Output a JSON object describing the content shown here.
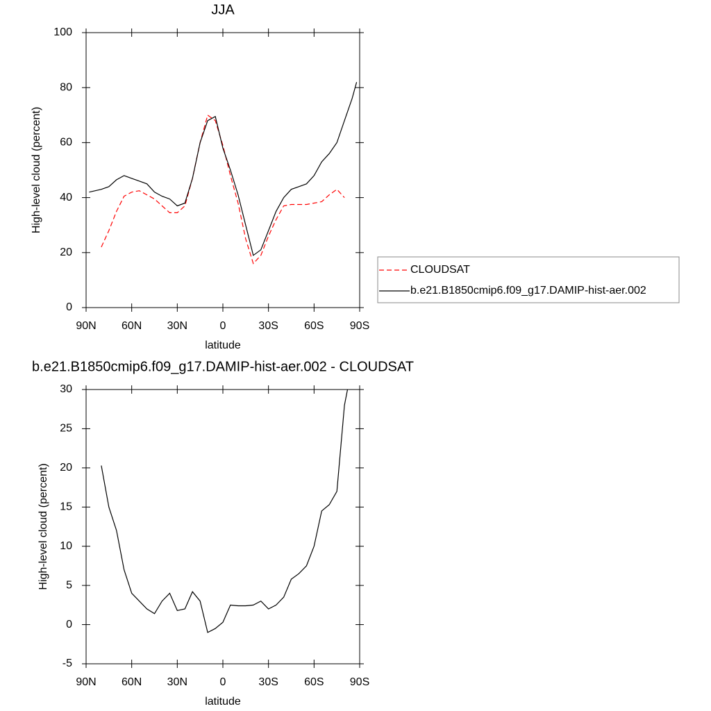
{
  "chart_data": [
    {
      "type": "line",
      "title": "JJA",
      "x_label": "latitude",
      "y_label": "High-level cloud (percent)",
      "x": [
        88,
        80,
        75,
        70,
        65,
        60,
        55,
        50,
        45,
        40,
        35,
        30,
        25,
        20,
        15,
        10,
        5,
        0,
        -5,
        -10,
        -15,
        -20,
        -25,
        -30,
        -35,
        -40,
        -45,
        -50,
        -55,
        -60,
        -65,
        -70,
        -75,
        -80,
        -85,
        -88
      ],
      "series": [
        {
          "name": "CLOUDSAT",
          "color": "#ff0000",
          "line_style": "dashed",
          "values": [
            null,
            22,
            28,
            35,
            40.5,
            42,
            42.5,
            41,
            39.5,
            37,
            34.5,
            34.5,
            37,
            47,
            60,
            70,
            68,
            59,
            48,
            38,
            25,
            16,
            19,
            26,
            32,
            37,
            37.5,
            37.5,
            37.5,
            38,
            38.5,
            41,
            43,
            40,
            null,
            null
          ]
        },
        {
          "name": "b.e21.B1850cmip6.f09_g17.DAMIP-hist-aer.002",
          "color": "#000000",
          "line_style": "solid",
          "values": [
            42,
            43,
            44,
            46.5,
            48,
            47,
            46,
            45,
            42,
            40.5,
            39.5,
            37,
            38,
            47,
            60,
            68,
            69.5,
            58,
            50,
            41,
            30,
            19,
            21,
            28,
            35,
            40,
            43,
            44,
            45,
            48,
            53,
            56,
            60,
            68,
            76,
            82
          ]
        }
      ],
      "xlim": [
        90,
        -90
      ],
      "xticks": [
        {
          "value": 90,
          "label": "90N"
        },
        {
          "value": 60,
          "label": "60N"
        },
        {
          "value": 30,
          "label": "30N"
        },
        0,
        {
          "value": -30,
          "label": "30S"
        },
        {
          "value": -60,
          "label": "60S"
        },
        {
          "value": -90,
          "label": "90S"
        }
      ],
      "ylim": [
        0,
        100
      ],
      "yticks": [
        0,
        20,
        40,
        60,
        80,
        100
      ],
      "legend": "right"
    },
    {
      "type": "line",
      "title": "b.e21.B1850cmip6.f09_g17.DAMIP-hist-aer.002 - CLOUDSAT",
      "x_label": "latitude",
      "y_label": "High-level cloud (percent)",
      "x": [
        80,
        75,
        70,
        65,
        60,
        55,
        50,
        45,
        40,
        35,
        30,
        25,
        20,
        15,
        10,
        5,
        0,
        -5,
        -10,
        -15,
        -20,
        -25,
        -30,
        -35,
        -40,
        -45,
        -50,
        -55,
        -60,
        -65,
        -70,
        -75,
        -80,
        -82
      ],
      "series": [
        {
          "color": "#000000",
          "line_style": "solid",
          "values": [
            20.3,
            15,
            12,
            7,
            4,
            3,
            2,
            1.4,
            3,
            4,
            1.8,
            2,
            4.2,
            3,
            -1,
            -0.5,
            0.3,
            2.5,
            2.4,
            2.4,
            2.5,
            3,
            2,
            2.5,
            3.5,
            5.8,
            6.5,
            7.5,
            10,
            14.5,
            15.3,
            17,
            28,
            30
          ]
        }
      ],
      "xlim": [
        90,
        -90
      ],
      "xticks": [
        {
          "value": 90,
          "label": "90N"
        },
        {
          "value": 60,
          "label": "60N"
        },
        {
          "value": 30,
          "label": "30N"
        },
        0,
        {
          "value": -30,
          "label": "30S"
        },
        {
          "value": -60,
          "label": "60S"
        },
        {
          "value": -90,
          "label": "90S"
        }
      ],
      "ylim": [
        -5,
        30
      ],
      "yticks": [
        -5,
        0,
        5,
        10,
        15,
        20,
        25,
        30
      ]
    }
  ]
}
